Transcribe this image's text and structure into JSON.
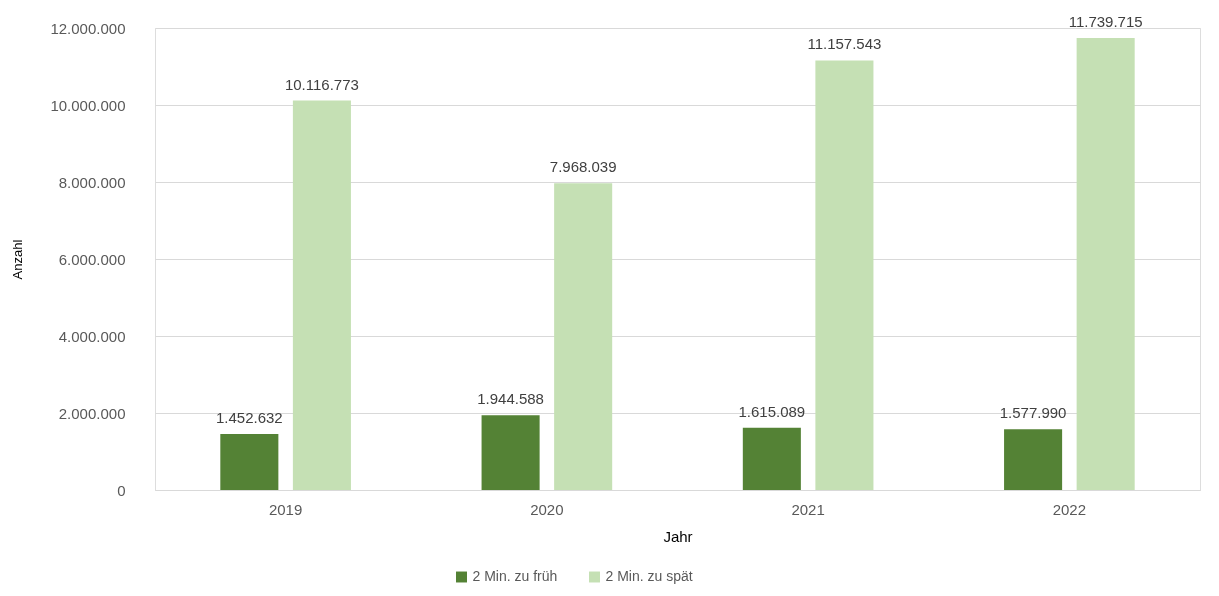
{
  "chart_data": {
    "type": "bar",
    "xlabel": "Jahr",
    "ylabel": "Anzahl",
    "categories": [
      "2019",
      "2020",
      "2021",
      "2022"
    ],
    "series": [
      {
        "name": "2 Min. zu früh",
        "color": "#548235",
        "values": [
          1452632,
          1944588,
          1615089,
          1577990
        ],
        "value_labels": [
          "1.452.632",
          "1.944.588",
          "1.615.089",
          "1.577.990"
        ]
      },
      {
        "name": "2 Min. zu spät",
        "color": "#c5e0b4",
        "values": [
          10116773,
          7968039,
          11157543,
          11739715
        ],
        "value_labels": [
          "10.116.773",
          "7.968.039",
          "11.157.543",
          "11.739.715"
        ]
      }
    ],
    "ylim": [
      0,
      12000000
    ],
    "yticks": [
      0,
      {
        "value": 2000000,
        "label": "2.000.000"
      },
      {
        "value": 4000000,
        "label": "4.000.000"
      },
      {
        "value": 6000000,
        "label": "6.000.000"
      },
      {
        "value": 8000000,
        "label": "8.000.000"
      },
      {
        "value": 10000000,
        "label": "10.000.000"
      },
      {
        "value": 12000000,
        "label": "12.000.000"
      }
    ],
    "grid": "y",
    "legend": "bottom"
  }
}
